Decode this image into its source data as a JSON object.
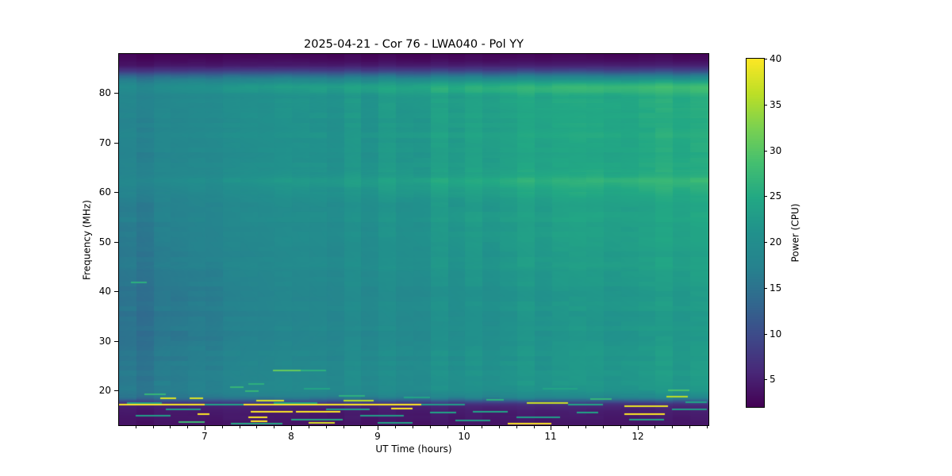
{
  "figure": {
    "background": "#ffffff"
  },
  "chart_data": {
    "type": "heatmap",
    "title": "2025-04-21 - Cor 76 - LWA040 - Pol YY",
    "xlabel": "UT Time (hours)",
    "ylabel": "Frequency (MHz)",
    "colorbar_label": "Power (CPU)",
    "x_range": [
      6.01,
      12.82
    ],
    "y_range": [
      13.0,
      87.9
    ],
    "clim": [
      2,
      40
    ],
    "x_ticks": [
      {
        "v": 7,
        "label": "7"
      },
      {
        "v": 8,
        "label": "8"
      },
      {
        "v": 9,
        "label": "9"
      },
      {
        "v": 10,
        "label": "10"
      },
      {
        "v": 11,
        "label": "11"
      },
      {
        "v": 12,
        "label": "12"
      }
    ],
    "x_minor_step": 0.2,
    "y_ticks": [
      {
        "v": 20,
        "label": "20"
      },
      {
        "v": 30,
        "label": "30"
      },
      {
        "v": 40,
        "label": "40"
      },
      {
        "v": 50,
        "label": "50"
      },
      {
        "v": 60,
        "label": "60"
      },
      {
        "v": 70,
        "label": "70"
      },
      {
        "v": 80,
        "label": "80"
      }
    ],
    "cbar_ticks": [
      {
        "v": 5,
        "label": "5"
      },
      {
        "v": 10,
        "label": "10"
      },
      {
        "v": 15,
        "label": "15"
      },
      {
        "v": 20,
        "label": "20"
      },
      {
        "v": 25,
        "label": "25"
      },
      {
        "v": 30,
        "label": "30"
      },
      {
        "v": 35,
        "label": "35"
      },
      {
        "v": 40,
        "label": "40"
      }
    ],
    "colormap": "viridis",
    "colormap_stops": [
      [
        0.0,
        "#440154"
      ],
      [
        0.1,
        "#482878"
      ],
      [
        0.2,
        "#3e4989"
      ],
      [
        0.3,
        "#31688e"
      ],
      [
        0.4,
        "#26828e"
      ],
      [
        0.5,
        "#21918c"
      ],
      [
        0.6,
        "#22a884"
      ],
      [
        0.7,
        "#44bf70"
      ],
      [
        0.8,
        "#7ad151"
      ],
      [
        0.9,
        "#bddf26"
      ],
      [
        1.0,
        "#fde725"
      ]
    ],
    "time_curve": [
      [
        6.01,
        0.0
      ],
      [
        7.0,
        0.18
      ],
      [
        8.0,
        0.38
      ],
      [
        9.0,
        0.55
      ],
      [
        10.0,
        0.72
      ],
      [
        11.0,
        0.85
      ],
      [
        12.0,
        0.95
      ],
      [
        12.82,
        1.0
      ]
    ],
    "freq_profile": [
      [
        13.0,
        3.5,
        4.0
      ],
      [
        14,
        3.7,
        4.3
      ],
      [
        15,
        3.9,
        4.6
      ],
      [
        16,
        4.2,
        5.0
      ],
      [
        16.8,
        4.8,
        5.8
      ],
      [
        17.3,
        6.0,
        7.5
      ],
      [
        17.8,
        9.0,
        11.5
      ],
      [
        18.3,
        13.0,
        16.5
      ],
      [
        18.8,
        14.8,
        19.5
      ],
      [
        19.4,
        15.5,
        21.0
      ],
      [
        20,
        15.8,
        22.3
      ],
      [
        21,
        15.5,
        22.6
      ],
      [
        22,
        15.2,
        22.8
      ],
      [
        24,
        15.4,
        23.0
      ],
      [
        26,
        15.2,
        23.2
      ],
      [
        28,
        15.0,
        23.1
      ],
      [
        30,
        14.8,
        23.0
      ],
      [
        32,
        14.6,
        22.8
      ],
      [
        34,
        14.4,
        22.7
      ],
      [
        36,
        14.5,
        22.9
      ],
      [
        38,
        14.6,
        23.1
      ],
      [
        40,
        14.8,
        23.3
      ],
      [
        42,
        14.9,
        23.5
      ],
      [
        44,
        15.0,
        23.7
      ],
      [
        44.8,
        15.8,
        24.4
      ],
      [
        45.6,
        15.3,
        24.0
      ],
      [
        47,
        15.4,
        24.1
      ],
      [
        49,
        15.6,
        24.3
      ],
      [
        51,
        15.8,
        24.5
      ],
      [
        53,
        15.9,
        24.6
      ],
      [
        55,
        16.0,
        24.8
      ],
      [
        57,
        16.1,
        24.6
      ],
      [
        59,
        16.5,
        25.1
      ],
      [
        61,
        17.5,
        26.6
      ],
      [
        62.3,
        18.3,
        27.8
      ],
      [
        63.5,
        17.6,
        26.6
      ],
      [
        65,
        17.0,
        25.4
      ],
      [
        67,
        17.3,
        25.7
      ],
      [
        68.5,
        17.0,
        25.2
      ],
      [
        70,
        17.2,
        25.6
      ],
      [
        71.5,
        17.5,
        26.0
      ],
      [
        73,
        17.1,
        25.4
      ],
      [
        74.5,
        17.4,
        25.8
      ],
      [
        76,
        17.2,
        25.4
      ],
      [
        77.5,
        17.8,
        26.2
      ],
      [
        79,
        17.4,
        25.7
      ],
      [
        80.4,
        18.4,
        27.8
      ],
      [
        81.2,
        18.8,
        28.5
      ],
      [
        82.0,
        17.5,
        26.0
      ],
      [
        82.7,
        16.0,
        22.5
      ],
      [
        83.5,
        12.5,
        17.0
      ],
      [
        84.5,
        7.5,
        10.0
      ],
      [
        85.5,
        4.0,
        5.5
      ],
      [
        86.5,
        2.8,
        3.4
      ],
      [
        87.9,
        2.2,
        2.6
      ]
    ],
    "rfi_streaks": [
      [
        6.01,
        9.7,
        17.2,
        40
      ],
      [
        6.49,
        6.67,
        18.4,
        38
      ],
      [
        6.83,
        6.99,
        18.4,
        38
      ],
      [
        6.92,
        7.06,
        15.3,
        40
      ],
      [
        7.53,
        8.02,
        15.7,
        40
      ],
      [
        8.05,
        8.56,
        15.8,
        40
      ],
      [
        7.5,
        7.72,
        14.6,
        40
      ],
      [
        7.53,
        7.72,
        13.8,
        40
      ],
      [
        7.6,
        7.92,
        18.0,
        38
      ],
      [
        8.6,
        8.95,
        18.0,
        36
      ],
      [
        9.15,
        9.4,
        16.4,
        40
      ],
      [
        8.2,
        8.5,
        13.5,
        38
      ],
      [
        10.5,
        11.0,
        13.4,
        40
      ],
      [
        10.72,
        11.2,
        17.5,
        37
      ],
      [
        11.85,
        12.35,
        16.8,
        39
      ],
      [
        11.85,
        12.32,
        15.3,
        40
      ],
      [
        12.33,
        12.58,
        18.7,
        36
      ],
      [
        7.79,
        8.11,
        24.1,
        31
      ],
      [
        8.11,
        8.4,
        24.1,
        26
      ],
      [
        7.29,
        7.45,
        20.7,
        27
      ],
      [
        7.47,
        7.63,
        19.9,
        27
      ],
      [
        6.15,
        6.33,
        41.8,
        26
      ],
      [
        7.5,
        7.68,
        21.4,
        26
      ],
      [
        6.3,
        6.55,
        19.2,
        27
      ],
      [
        8.55,
        8.85,
        18.9,
        26
      ],
      [
        12.35,
        12.6,
        20.1,
        29
      ],
      [
        11.45,
        11.7,
        18.3,
        27
      ],
      [
        10.25,
        10.45,
        18.1,
        26
      ],
      [
        6.7,
        7.0,
        13.7,
        28
      ],
      [
        6.1,
        6.5,
        17.5,
        23
      ],
      [
        6.55,
        6.95,
        16.2,
        23
      ],
      [
        6.2,
        6.6,
        14.9,
        23
      ],
      [
        7.0,
        7.45,
        17.2,
        24
      ],
      [
        7.8,
        8.3,
        17.5,
        24
      ],
      [
        8.4,
        8.9,
        16.2,
        23
      ],
      [
        8.0,
        8.6,
        14.1,
        25
      ],
      [
        7.3,
        7.9,
        13.3,
        25
      ],
      [
        8.8,
        9.3,
        14.9,
        23
      ],
      [
        9.5,
        10.0,
        17.2,
        23
      ],
      [
        10.1,
        10.5,
        15.8,
        24
      ],
      [
        10.6,
        11.1,
        14.6,
        23
      ],
      [
        11.2,
        11.6,
        17.2,
        24
      ],
      [
        11.9,
        12.3,
        14.1,
        24
      ],
      [
        12.4,
        12.8,
        16.2,
        23
      ],
      [
        9.0,
        9.4,
        13.5,
        24
      ],
      [
        9.9,
        10.3,
        13.9,
        23
      ],
      [
        9.3,
        9.6,
        18.6,
        24
      ],
      [
        10.9,
        11.3,
        20.4,
        24
      ],
      [
        9.6,
        9.9,
        15.5,
        24
      ],
      [
        11.3,
        11.55,
        15.6,
        24
      ],
      [
        12.55,
        12.8,
        17.6,
        24
      ],
      [
        8.15,
        8.45,
        20.4,
        24
      ]
    ]
  }
}
